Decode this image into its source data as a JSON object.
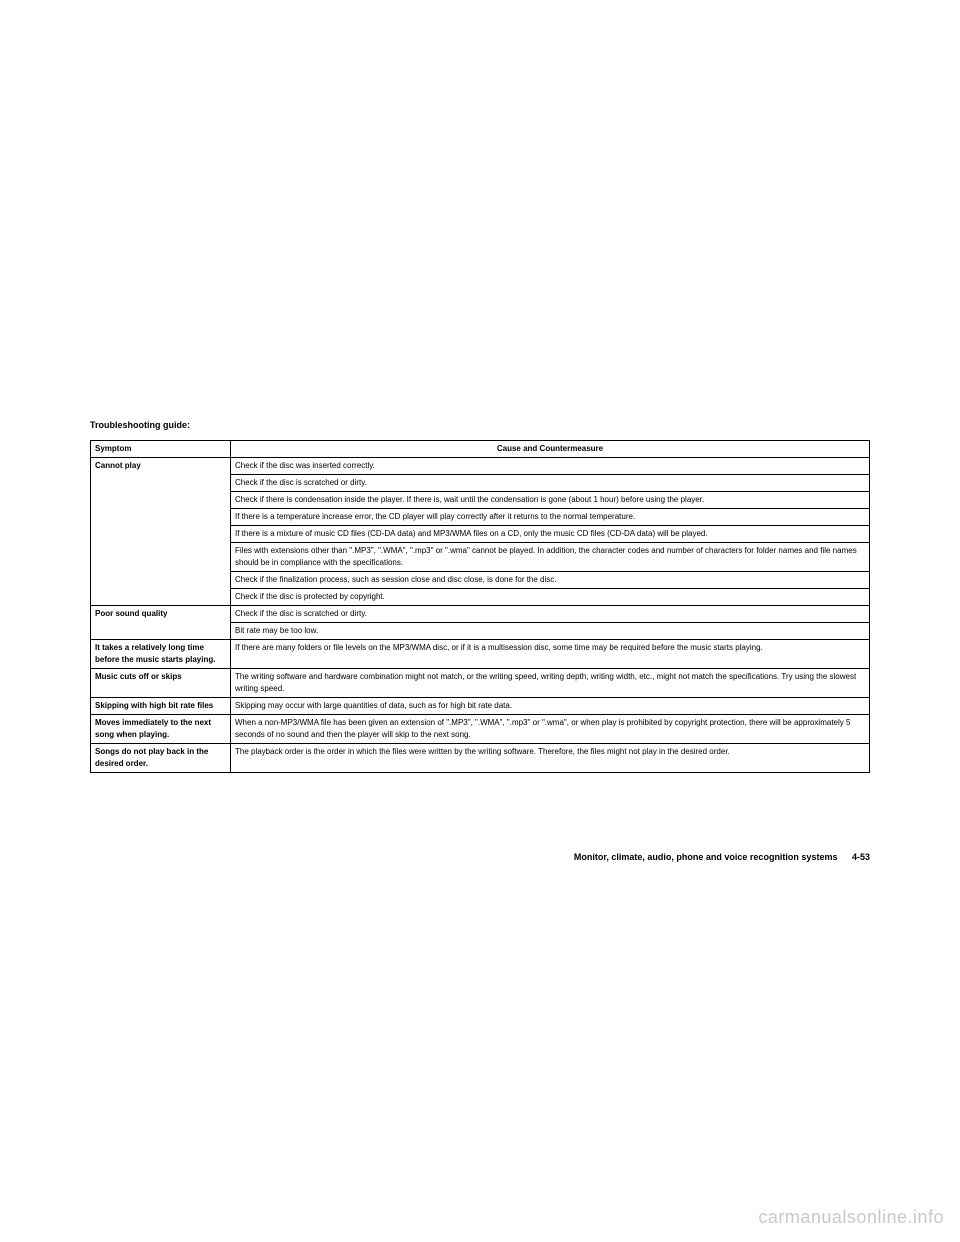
{
  "title": "Troubleshooting guide:",
  "table": {
    "headers": {
      "symptom": "Symptom",
      "cause": "Cause and Countermeasure"
    },
    "rows": [
      {
        "symptom": "Cannot play",
        "causes": [
          "Check if the disc was inserted correctly.",
          "Check if the disc is scratched or dirty.",
          "Check if there is condensation inside the player. If there is, wait until the condensation is gone (about 1 hour) before using the player.",
          "If there is a temperature increase error, the CD player will play correctly after it returns to the normal temperature.",
          "If there is a mixture of music CD files (CD-DA data) and MP3/WMA files on a CD, only the music CD files (CD-DA data) will be played.",
          "Files with extensions other than \".MP3\", \".WMA\", \".mp3\" or \".wma\" cannot be played. In addition, the character codes and number of characters for folder names and file names should be in compliance with the specifications.",
          "Check if the finalization process, such as session close and disc close, is done for the disc.",
          "Check if the disc is protected by copyright."
        ]
      },
      {
        "symptom": "Poor sound quality",
        "causes": [
          "Check if the disc is scratched or dirty.",
          "Bit rate may be too low."
        ]
      },
      {
        "symptom": "It takes a relatively long time before the music starts playing.",
        "causes": [
          "If there are many folders or file levels on the MP3/WMA disc, or if it is a multisession disc, some time may be required before the music starts playing."
        ]
      },
      {
        "symptom": "Music cuts off or skips",
        "causes": [
          "The writing software and hardware combination might not match, or the writing speed, writing depth, writing width, etc., might not match the specifications. Try using the slowest writing speed."
        ]
      },
      {
        "symptom": "Skipping with high bit rate files",
        "causes": [
          "Skipping may occur with large quantities of data, such as for high bit rate data."
        ]
      },
      {
        "symptom": "Moves immediately to the next song when playing.",
        "causes": [
          "When a non-MP3/WMA file has been given an extension of \".MP3\", \".WMA\", \".mp3\" or \".wma\", or when play is prohibited by copyright protection, there will be approximately 5 seconds of no sound and then the player will skip to the next song."
        ]
      },
      {
        "symptom": "Songs do not play back in the desired order.",
        "causes": [
          "The playback order is the order in which the files were written by the writing software. Therefore, the files might not play in the desired order."
        ]
      }
    ]
  },
  "footer": {
    "section": "Monitor, climate, audio, phone and voice recognition systems",
    "page": "4-53"
  },
  "watermark": "carmanualsonline.info",
  "colors": {
    "text": "#000000",
    "background": "#ffffff",
    "border": "#000000",
    "watermark": "#c8c8c8"
  },
  "typography": {
    "body_fontsize": 9,
    "table_fontsize": 8,
    "watermark_fontsize": 18
  }
}
